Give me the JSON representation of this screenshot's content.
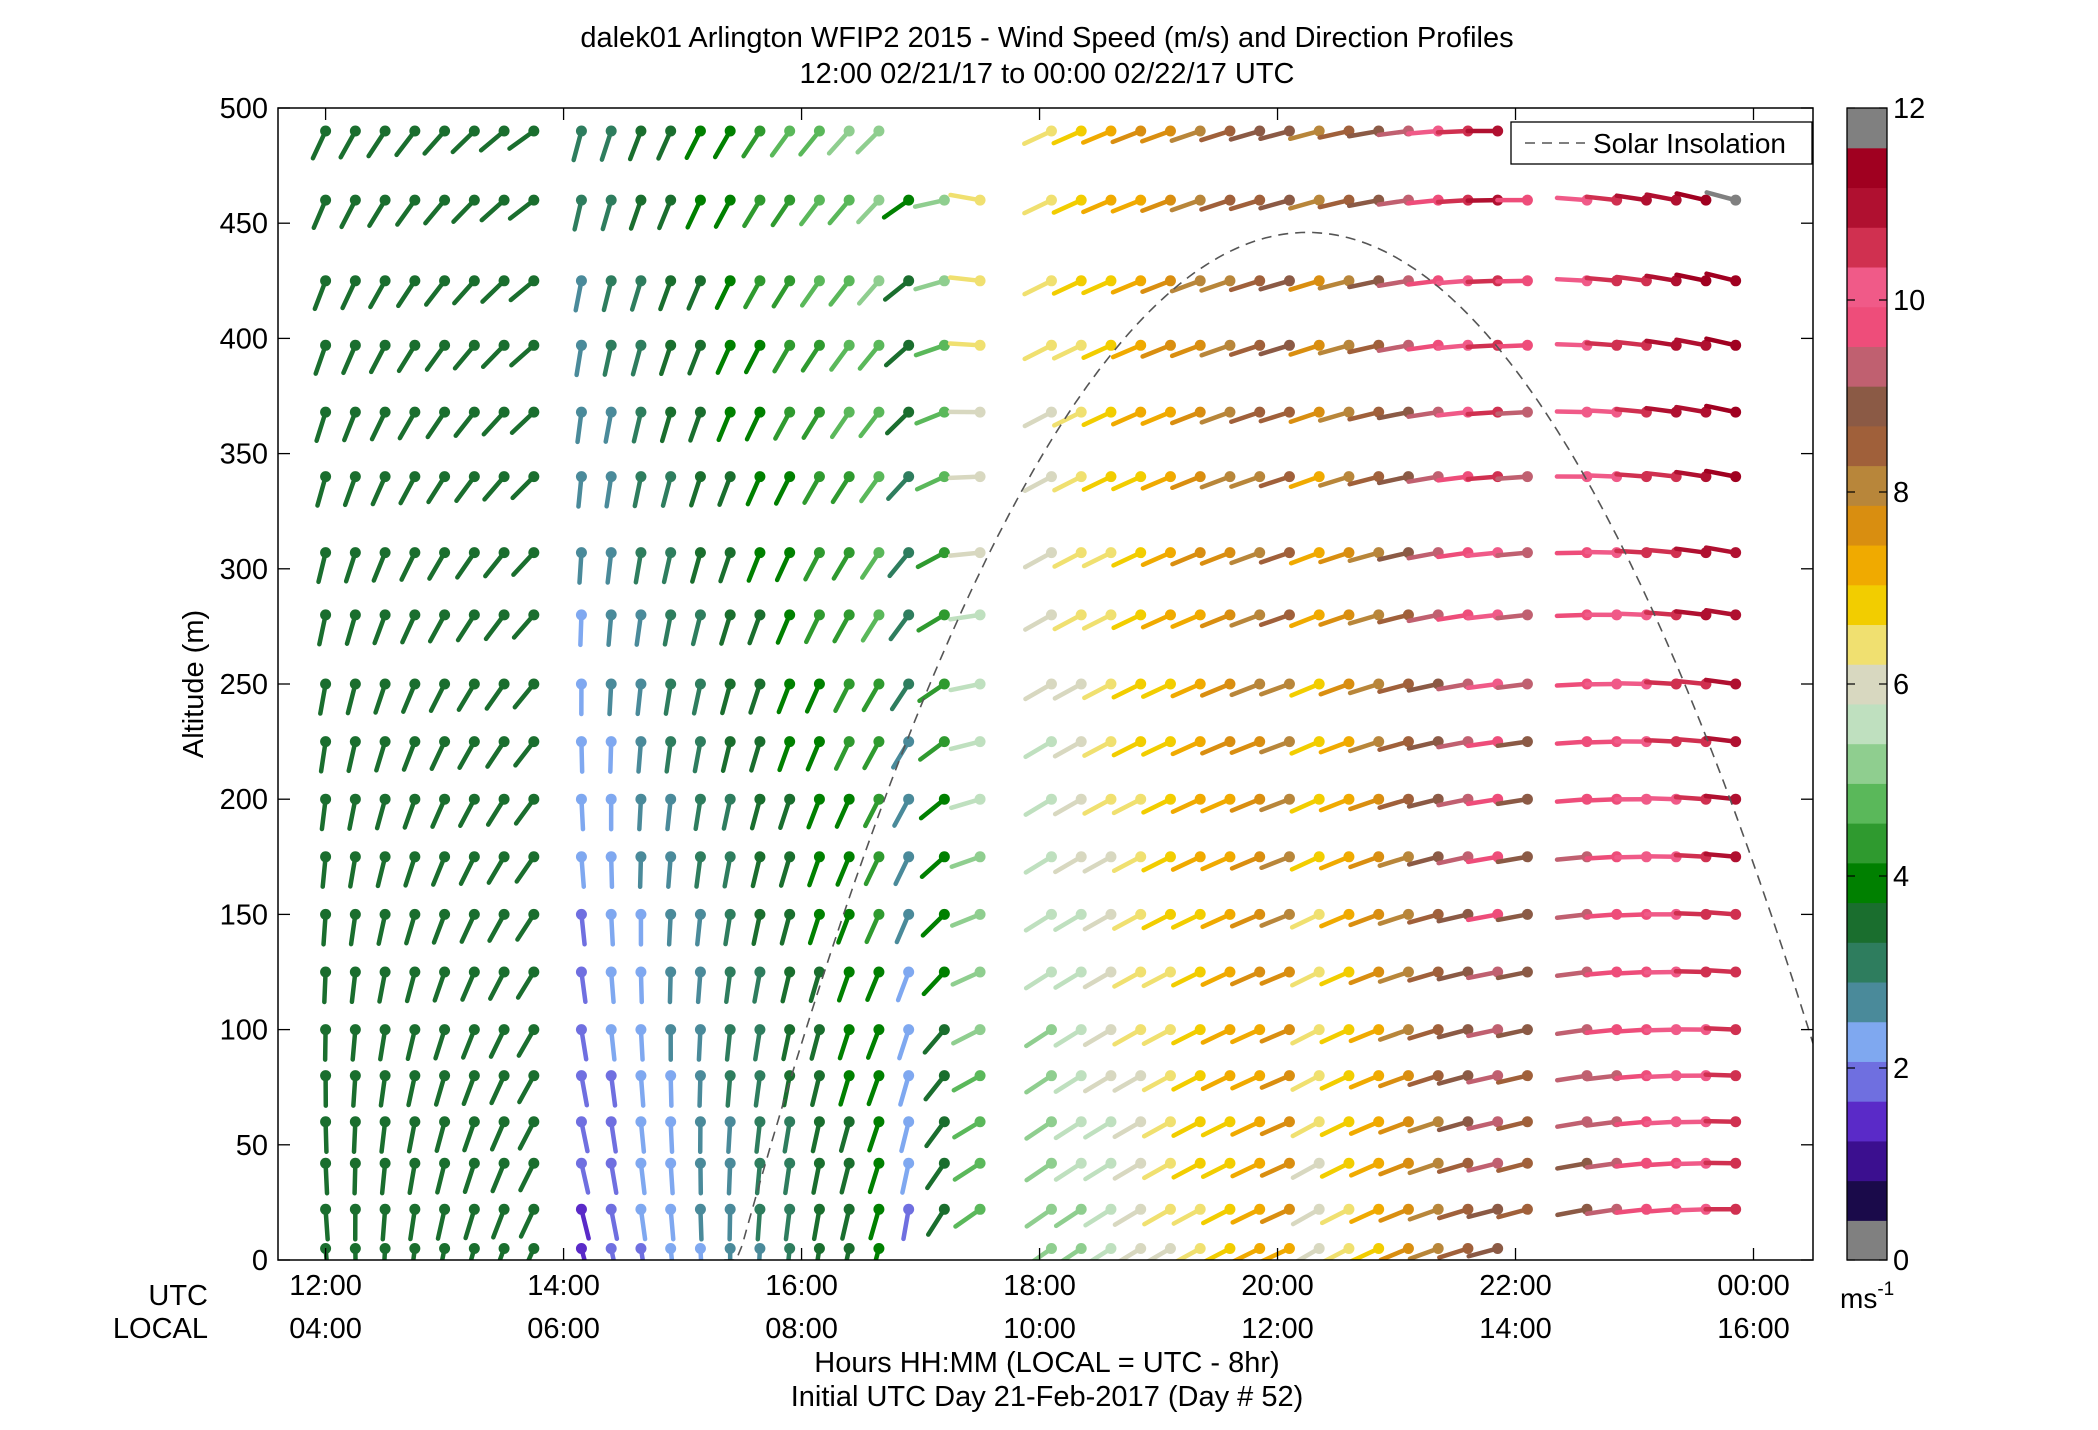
{
  "chart_data": {
    "type": "wind-barb-profile",
    "title": "dalek01 Arlington WFIP2 2015 - Wind Speed (m/s) and Direction Profiles",
    "subtitle": "12:00 02/21/17 to 00:00 02/22/17  UTC",
    "ylabel": "Altitude (m)",
    "xlabel_line1": "Hours HH:MM  (LOCAL = UTC - 8hr)",
    "xlabel_line2": "Initial UTC Day 21-Feb-2017 (Day # 52)",
    "utc_label": "UTC",
    "local_label": "LOCAL",
    "xlim_utc_hours": [
      11.6,
      24.5
    ],
    "ylim": [
      0,
      500
    ],
    "y_ticks": [
      "0",
      "50",
      "100",
      "150",
      "200",
      "250",
      "300",
      "350",
      "400",
      "450",
      "500"
    ],
    "x_ticks_utc": [
      "12:00",
      "14:00",
      "16:00",
      "18:00",
      "20:00",
      "22:00",
      "00:00"
    ],
    "x_ticks_local": [
      "04:00",
      "06:00",
      "08:00",
      "10:00",
      "12:00",
      "14:00",
      "16:00"
    ],
    "x_tick_hours": [
      12,
      14,
      16,
      18,
      20,
      22,
      24
    ],
    "legend": {
      "entries": [
        "Solar Insolation"
      ],
      "position": "top-right"
    },
    "colorbar": {
      "range": [
        0,
        12
      ],
      "ticks": [
        "0",
        "2",
        "4",
        "6",
        "8",
        "10",
        "12"
      ],
      "unit_base": "ms",
      "unit_exp": "-1",
      "colors": [
        "#808080",
        "#1a0a4a",
        "#3b0f8f",
        "#5a2ac8",
        "#6f6fe0",
        "#7fa8f0",
        "#4a8a9a",
        "#2e7d5e",
        "#1a6e2e",
        "#008000",
        "#2f9a2f",
        "#5ab85a",
        "#8fce8f",
        "#bfe0bf",
        "#d8d8c0",
        "#f0e070",
        "#f2cd00",
        "#f0aa00",
        "#d98e10",
        "#b8863a",
        "#a0603a",
        "#8b5a45",
        "#c06070",
        "#ee4d7a",
        "#f05a88",
        "#d03050",
        "#b01030",
        "#a00020",
        "#808080"
      ]
    },
    "solar_curve": {
      "peak_utc_hour": 20.25,
      "peak_altitude": 446,
      "start_utc_hour": 15.35,
      "end_utc_hour": 24.5,
      "end_altitude": 94
    },
    "heights": [
      5,
      22,
      42,
      60,
      80,
      100,
      125,
      150,
      175,
      200,
      225,
      250,
      280,
      307,
      340,
      368,
      397,
      425,
      460,
      490
    ],
    "times_utc_hours": [
      12.0,
      12.25,
      12.5,
      12.75,
      13.0,
      13.25,
      13.5,
      13.75,
      14.15,
      14.4,
      14.65,
      14.9,
      15.15,
      15.4,
      15.65,
      15.9,
      16.15,
      16.4,
      16.65,
      16.9,
      17.2,
      17.5,
      18.1,
      18.35,
      18.6,
      18.85,
      19.1,
      19.35,
      19.6,
      19.85,
      20.1,
      20.35,
      20.6,
      20.85,
      21.1,
      21.35,
      21.6,
      21.85,
      22.1,
      22.6,
      22.85,
      23.1,
      23.35,
      23.6,
      23.85
    ],
    "block_ranges": [
      {
        "t0": 12.0,
        "t1": 13.8,
        "h0": 5,
        "h1": 490,
        "dir0": 175,
        "dir1": 235,
        "spd0": 3.4,
        "spd1": 3.7
      },
      {
        "t0": 14.15,
        "t1": 16.65,
        "h0": 5,
        "h1": 490,
        "dir0": 165,
        "dir1": 225,
        "spd0": 1.6,
        "spd1": 5.2
      },
      {
        "t0": 16.9,
        "t1": 17.5,
        "h0": 22,
        "h1": 460,
        "dir0": 190,
        "dir1": 280,
        "spd0": 2.0,
        "spd1": 6.5
      },
      {
        "t0": 18.1,
        "t1": 20.1,
        "h0": 5,
        "h1": 490,
        "dir0": 235,
        "dir1": 255,
        "spd0": 5.0,
        "spd1": 9.0
      },
      {
        "t0": 20.35,
        "t1": 21.85,
        "h0": 5,
        "h1": 490,
        "dir0": 240,
        "dir1": 270,
        "spd0": 6.0,
        "spd1": 11.0
      },
      {
        "t0": 22.1,
        "t1": 23.85,
        "h0": 22,
        "h1": 460,
        "dir0": 255,
        "dir1": 285,
        "spd0": 8.5,
        "spd1": 11.6
      }
    ]
  }
}
